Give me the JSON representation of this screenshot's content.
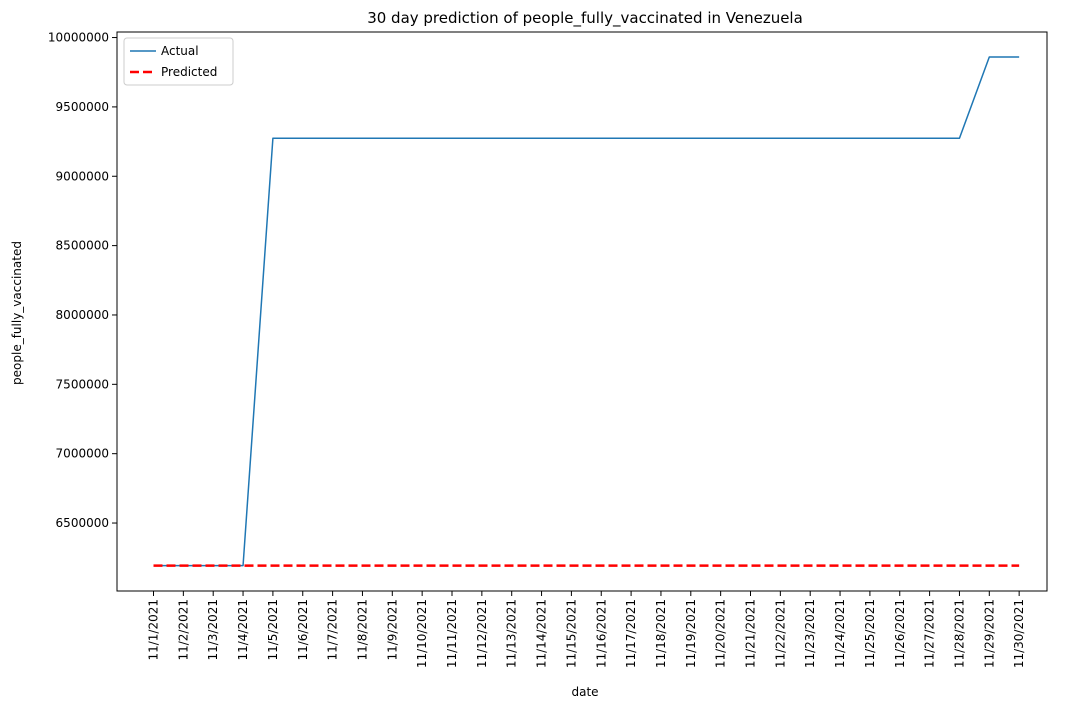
{
  "chart_data": {
    "type": "line",
    "title": "30 day prediction of people_fully_vaccinated in Venezuela",
    "xlabel": "date",
    "ylabel": "people_fully_vaccinated",
    "x": [
      "11/1/2021",
      "11/2/2021",
      "11/3/2021",
      "11/4/2021",
      "11/5/2021",
      "11/6/2021",
      "11/7/2021",
      "11/8/2021",
      "11/9/2021",
      "11/10/2021",
      "11/11/2021",
      "11/12/2021",
      "11/13/2021",
      "11/14/2021",
      "11/15/2021",
      "11/16/2021",
      "11/17/2021",
      "11/18/2021",
      "11/19/2021",
      "11/20/2021",
      "11/21/2021",
      "11/22/2021",
      "11/23/2021",
      "11/24/2021",
      "11/25/2021",
      "11/26/2021",
      "11/27/2021",
      "11/28/2021",
      "11/29/2021",
      "11/30/2021"
    ],
    "yticks": [
      6500000,
      7000000,
      7500000,
      8000000,
      8500000,
      9000000,
      9500000,
      10000000
    ],
    "ylim": [
      6010000,
      10040000
    ],
    "grid": false,
    "legend_position": "top-left",
    "series": [
      {
        "name": "Actual",
        "color": "#1f77b4",
        "style": "solid",
        "values": [
          6193000,
          6193000,
          6193000,
          6193000,
          9274000,
          9274000,
          9274000,
          9274000,
          9274000,
          9274000,
          9274000,
          9274000,
          9274000,
          9274000,
          9274000,
          9274000,
          9274000,
          9274000,
          9274000,
          9274000,
          9274000,
          9274000,
          9274000,
          9274000,
          9274000,
          9274000,
          9274000,
          9274000,
          9860000,
          9860000
        ]
      },
      {
        "name": "Predicted",
        "color": "#ff0000",
        "style": "dashed",
        "values": [
          6193000,
          6193000,
          6193000,
          6193000,
          6193000,
          6193000,
          6193000,
          6193000,
          6193000,
          6193000,
          6193000,
          6193000,
          6193000,
          6193000,
          6193000,
          6193000,
          6193000,
          6193000,
          6193000,
          6193000,
          6193000,
          6193000,
          6193000,
          6193000,
          6193000,
          6193000,
          6193000,
          6193000,
          6193000,
          6193000
        ]
      }
    ]
  }
}
